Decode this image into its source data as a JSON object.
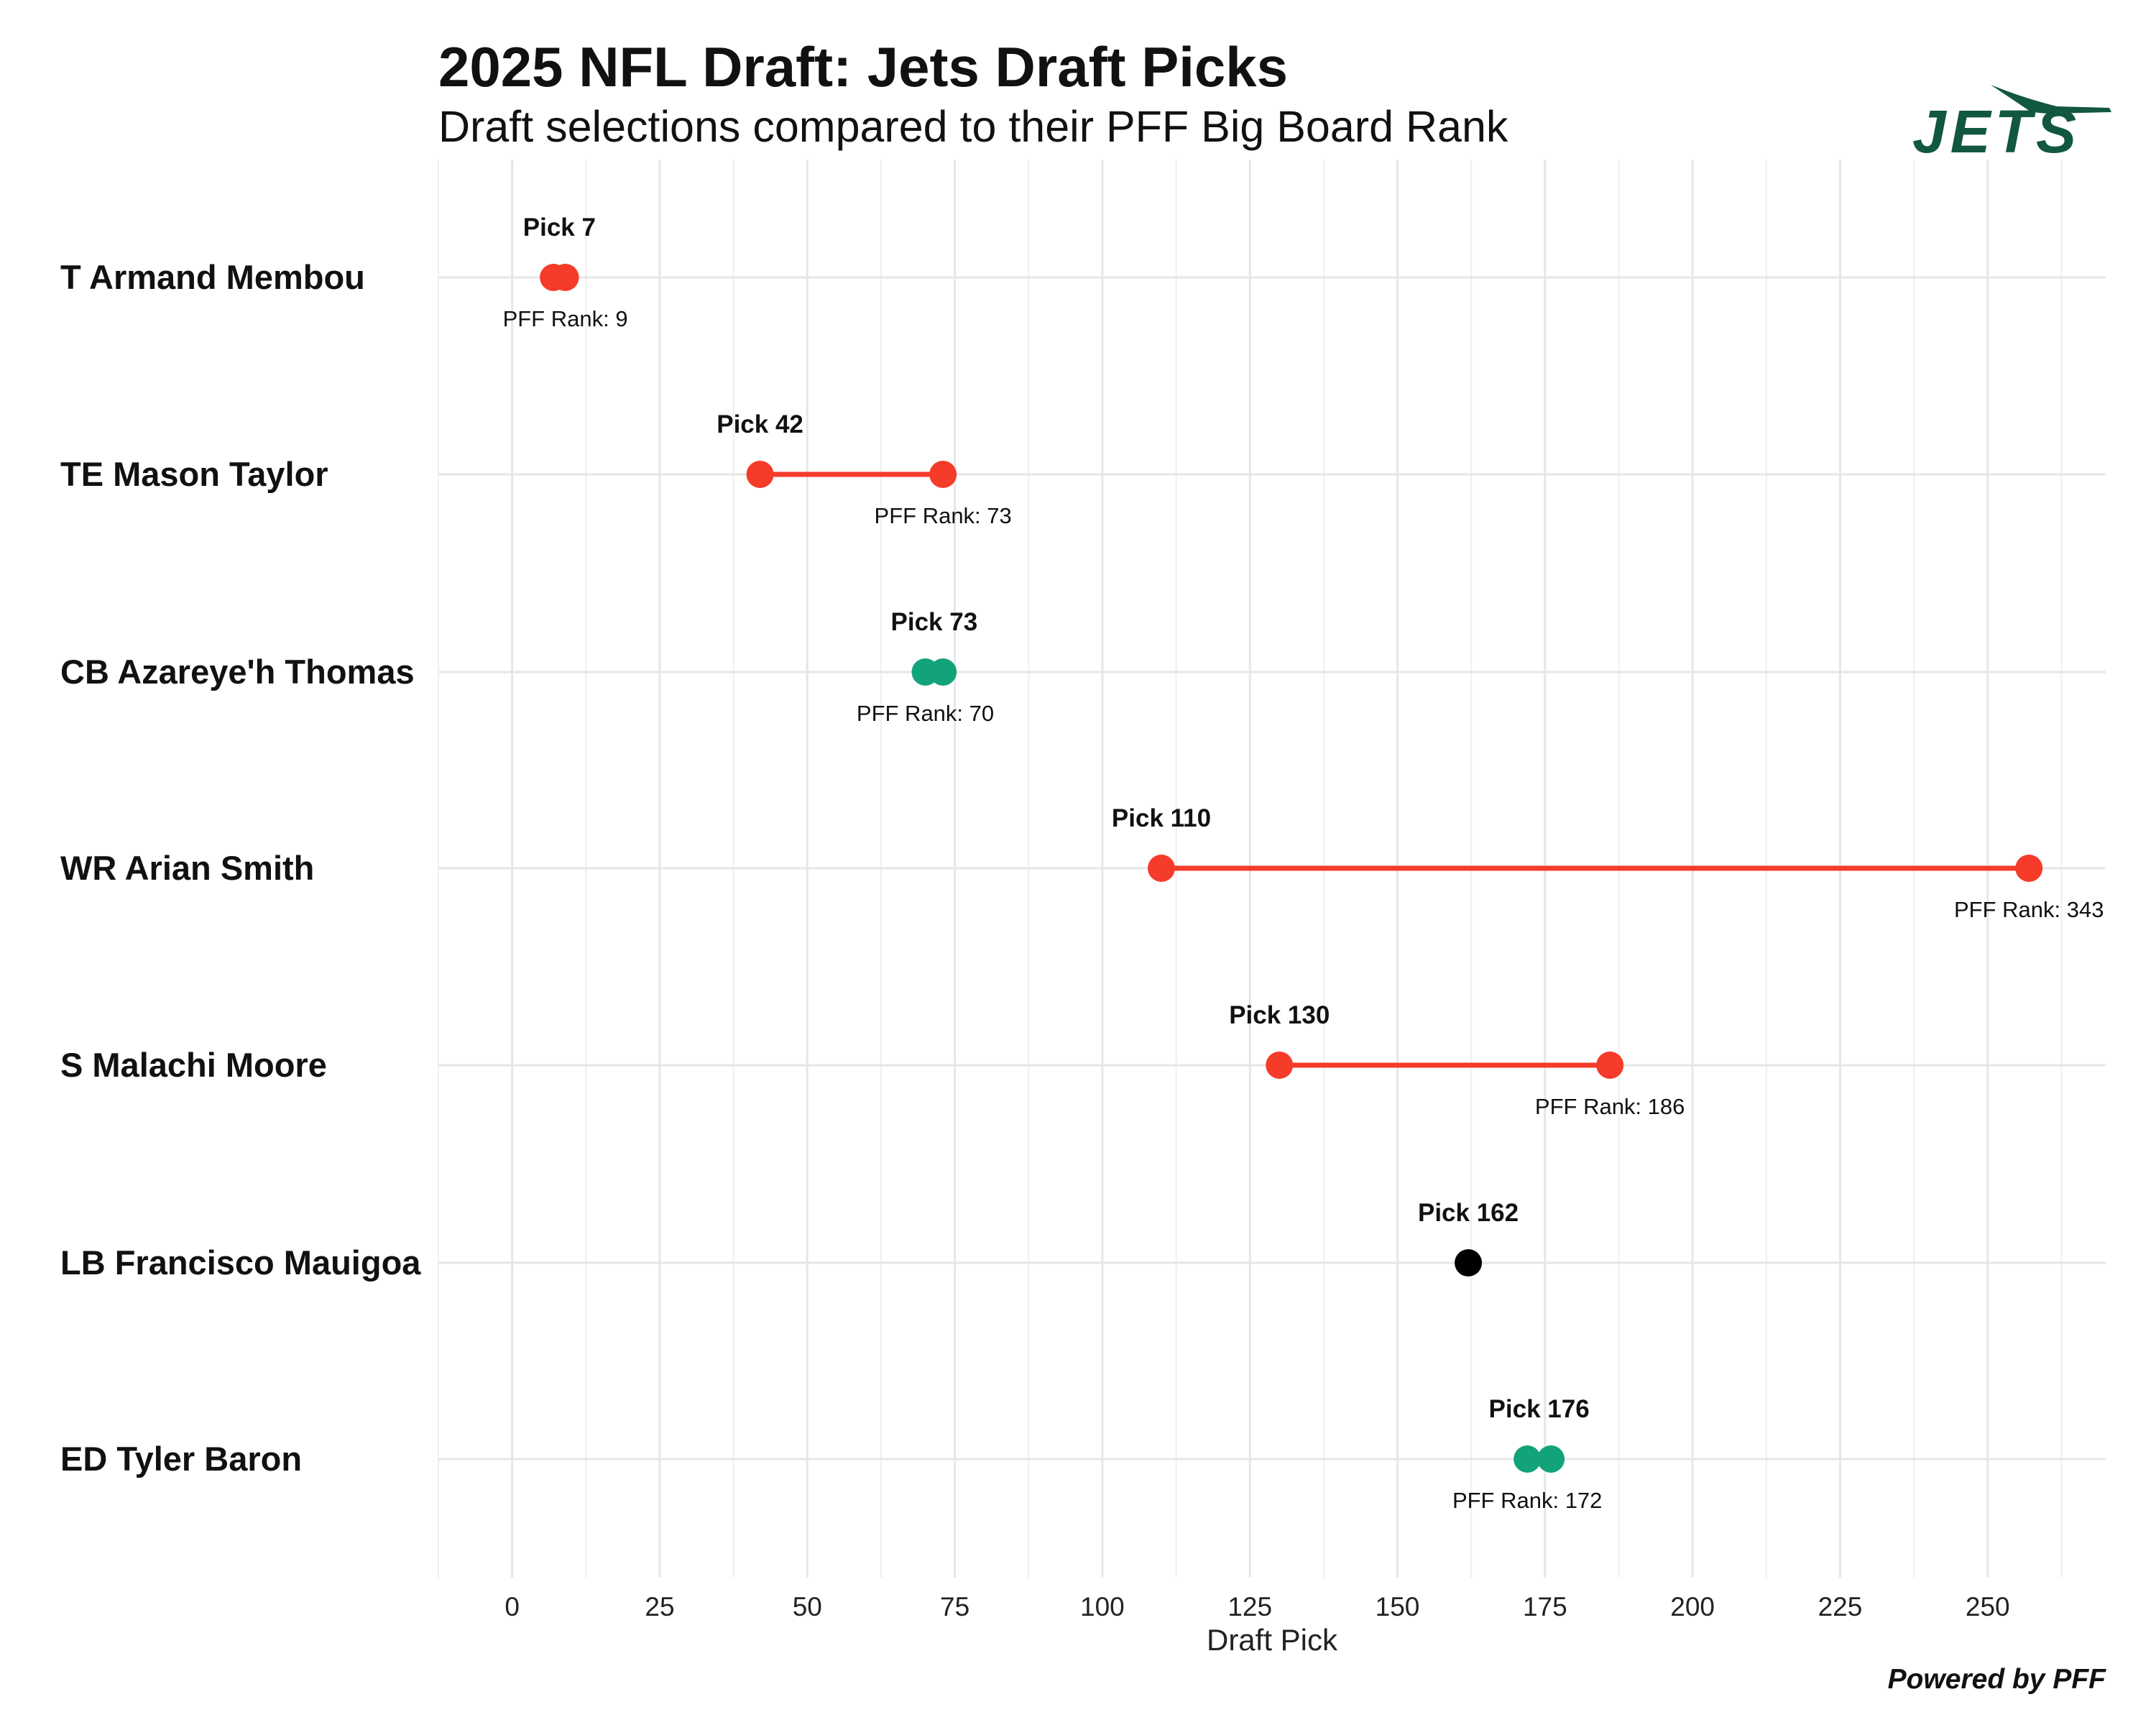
{
  "chart_data": {
    "type": "dumbbell",
    "title": "2025 NFL Draft: Jets Draft Picks",
    "subtitle": "Draft selections compared to their PFF Big Board Rank",
    "xlabel": "Draft Pick",
    "xlim": [
      -12.5,
      270
    ],
    "xticks": [
      0,
      25,
      50,
      75,
      100,
      125,
      150,
      175,
      200,
      225,
      250
    ],
    "grid": true,
    "pick_prefix": "Pick ",
    "rank_prefix": "PFF Rank: ",
    "players": [
      {
        "name": "T Armand Membou",
        "pick": 7,
        "pff_rank": 9,
        "status": "reach",
        "rank_label_text": "PFF Rank: 9"
      },
      {
        "name": "TE Mason Taylor",
        "pick": 42,
        "pff_rank": 73,
        "status": "reach",
        "rank_label_text": "PFF Rank: 73"
      },
      {
        "name": "CB Azareye'h Thomas",
        "pick": 73,
        "pff_rank": 70,
        "status": "value",
        "rank_label_text": "PFF Rank: 70"
      },
      {
        "name": "WR Arian Smith",
        "pick": 110,
        "pff_rank": 343,
        "status": "reach",
        "plot_rank": 257,
        "rank_label_text": "PFF Rank: 343"
      },
      {
        "name": "S Malachi Moore",
        "pick": 130,
        "pff_rank": 186,
        "status": "reach",
        "rank_label_text": "PFF Rank: 186"
      },
      {
        "name": "LB Francisco Mauigoa",
        "pick": 162,
        "pff_rank": null,
        "status": "unranked",
        "rank_label_text": ""
      },
      {
        "name": "ED Tyler Baron",
        "pick": 176,
        "pff_rank": 172,
        "status": "value",
        "rank_label_text": "PFF Rank: 172"
      }
    ],
    "colors": {
      "reach": "#f53b2a",
      "value": "#12a37a",
      "unranked": "#000000",
      "logo": "#125740"
    },
    "logo_text": "JETS",
    "footer": "Powered by PFF"
  }
}
